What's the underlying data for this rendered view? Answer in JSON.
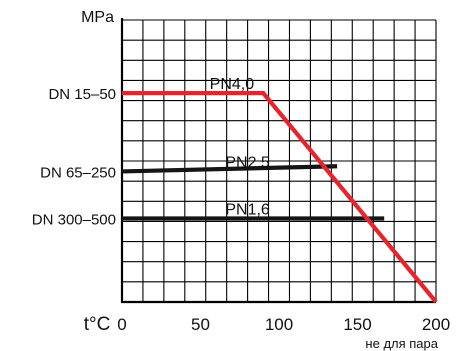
{
  "chart_data": {
    "type": "line",
    "ylabel": "MPa",
    "xlabel": "t°C",
    "x_ticks": [
      0,
      50,
      100,
      150,
      200
    ],
    "xlim": [
      0,
      200
    ],
    "ylim": [
      0,
      5.4
    ],
    "y_category_labels": [
      {
        "label": "DN 15–50",
        "y": 4.0
      },
      {
        "label": "DN 65–250",
        "y": 2.5
      },
      {
        "label": "DN 300–500",
        "y": 1.6
      }
    ],
    "note": "не для пара",
    "grid": true,
    "colors": {
      "red": "#e8232b",
      "black": "#151515",
      "grid": "#000000"
    },
    "series": [
      {
        "name": "PN4,0",
        "color_key": "red",
        "points": [
          [
            0,
            4.0
          ],
          [
            90,
            4.0
          ],
          [
            200,
            0.0
          ]
        ],
        "label_x": 70
      },
      {
        "name": "PN2,5",
        "color_key": "black",
        "points": [
          [
            0,
            2.5
          ],
          [
            137,
            2.6
          ]
        ],
        "label_x": 80
      },
      {
        "name": "PN1,6",
        "color_key": "black",
        "points": [
          [
            0,
            1.6
          ],
          [
            167,
            1.6
          ]
        ],
        "label_x": 80
      }
    ]
  }
}
